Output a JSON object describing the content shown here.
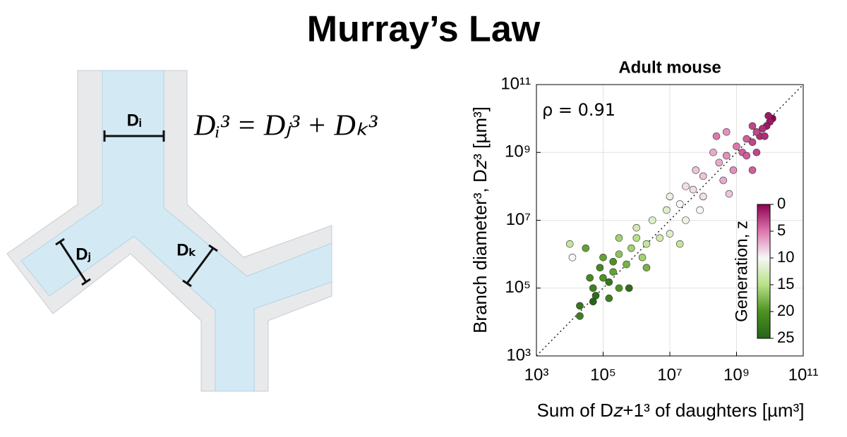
{
  "title": "Murray’s Law",
  "diagram": {
    "equation": "Dᵢ³ = Dⱼ³ + Dₖ³",
    "labels": [
      "Dᵢ",
      "Dⱼ",
      "Dₖ"
    ]
  },
  "chart_data": {
    "type": "scatter",
    "title": "Adult mouse",
    "annotation": "ρ = 0.91",
    "xlabel": "Sum of D𝑧+1³ of daughters [µm³]",
    "ylabel": "Branch diameter³, D𝑧³ [µm³]",
    "log_x": true,
    "log_y": true,
    "grid": true,
    "xlim": [
      1000,
      100000000000
    ],
    "ylim": [
      1000,
      100000000000
    ],
    "xticks": [
      {
        "value": 1000,
        "label": "10³"
      },
      {
        "value": 100000,
        "label": "10⁵"
      },
      {
        "value": 10000000,
        "label": "10⁷"
      },
      {
        "value": 1000000000,
        "label": "10⁹"
      },
      {
        "value": 100000000000,
        "label": "10¹¹"
      }
    ],
    "yticks": [
      {
        "value": 1000,
        "label": "10³"
      },
      {
        "value": 100000,
        "label": "10⁵"
      },
      {
        "value": 10000000,
        "label": "10⁷"
      },
      {
        "value": 1000000000,
        "label": "10⁹"
      },
      {
        "value": 100000000000,
        "label": "10¹¹"
      }
    ],
    "x": [
      12000000000.0,
      10000000000.0,
      8000000000.0,
      6000000000.0,
      5000000000.0,
      4000000000.0,
      3000000000.0,
      7000000000.0,
      2000000000.0,
      1500000000.0,
      1000000000.0,
      3000000000.0,
      9000000000.0,
      2000000000.0,
      500000000.0,
      800000000.0,
      300000000.0,
      200000000.0,
      100000000.0,
      400000000.0,
      60000000.0,
      50000000.0,
      100000000.0,
      30000000.0,
      20000000.0,
      10000000.0,
      30000000.0,
      8000000.0,
      5000000.0,
      3000000.0,
      2000000.0,
      10000000.0,
      1000000.0,
      1500000.0,
      700000.0,
      500000.0,
      300000.0,
      200000.0,
      100000.0,
      300000.0,
      80000.0,
      50000.0,
      150000.0,
      40000.0,
      20000.0,
      60000.0,
      10000.0,
      12000.0,
      30000.0,
      50000.0,
      2000000.0,
      600000.0,
      20000000.0,
      500000000.0,
      250000000.0,
      4000000000.0,
      1000000.0,
      300000.0,
      200000.0,
      100000.0,
      80000000.0,
      3000000000.0,
      600000000.0,
      20000.0,
      150000.0
    ],
    "y": [
      10000000000.0,
      8000000000.0,
      6000000000.0,
      5000000000.0,
      3000000000.0,
      4000000000.0,
      2000000000.0,
      3000000000.0,
      2500000000.0,
      1000000000.0,
      1500000000.0,
      6000000000.0,
      12000000000.0,
      800000000.0,
      800000000.0,
      300000000.0,
      500000000.0,
      1000000000.0,
      200000000.0,
      150000000.0,
      300000000.0,
      80000000.0,
      50000000.0,
      100000000.0,
      30000000.0,
      50000000.0,
      10000000.0,
      20000000.0,
      3000000.0,
      10000000.0,
      2000000.0,
      4000000.0,
      3000000.0,
      800000.0,
      1500000.0,
      500000.0,
      1000000.0,
      300000.0,
      200000.0,
      100000.0,
      400000.0,
      100000.0,
      50000.0,
      200000.0,
      30000.0,
      60000.0,
      2000000.0,
      800000.0,
      1500000.0,
      40000.0,
      400000.0,
      100000.0,
      2000000.0,
      4000000000.0,
      3000000000.0,
      1000000000.0,
      6000000.0,
      3000000.0,
      600000.0,
      800000.0,
      20000000.0,
      300000000.0,
      60000000.0,
      15000.0,
      150000.0
    ],
    "z": [
      0,
      1,
      1,
      2,
      2,
      3,
      3,
      2,
      4,
      4,
      5,
      3,
      1,
      4,
      6,
      6,
      7,
      7,
      8,
      7,
      8,
      9,
      9,
      9,
      10,
      11,
      11,
      12,
      13,
      12,
      14,
      12,
      15,
      16,
      16,
      18,
      17,
      19,
      20,
      20,
      21,
      22,
      22,
      21,
      23,
      24,
      14,
      10,
      19,
      25,
      18,
      24,
      14,
      6,
      5,
      3,
      13,
      16,
      20,
      19,
      10,
      4,
      8,
      22,
      23
    ],
    "colorbar": {
      "label": "Generation, z",
      "lim": [
        0,
        25
      ],
      "ticks": [
        0,
        5,
        10,
        15,
        20,
        25
      ],
      "colors": [
        "#8e0152",
        "#de77ae",
        "#f7f7f7",
        "#b8e186",
        "#4d9221",
        "#276419"
      ]
    }
  }
}
